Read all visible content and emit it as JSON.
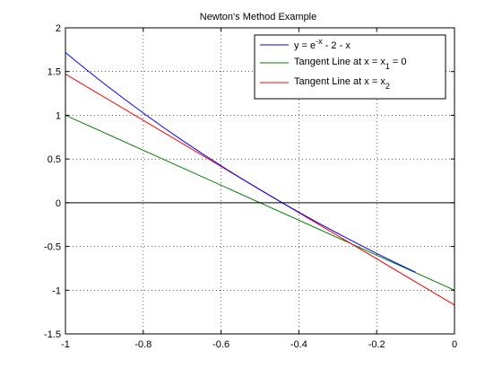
{
  "chart_data": {
    "type": "line",
    "title": "Newton's Method Example",
    "xlabel": "",
    "ylabel": "",
    "xlim": [
      -1,
      0
    ],
    "ylim": [
      -1.5,
      2
    ],
    "grid": true,
    "legend_position": "top-right",
    "xticks": [
      -1,
      -0.8,
      -0.6,
      -0.4,
      -0.2,
      0
    ],
    "xtick_labels": [
      "-1",
      "-0.8",
      "-0.6",
      "-0.4",
      "-0.2",
      "0"
    ],
    "yticks": [
      -1.5,
      -1,
      -0.5,
      0,
      0.5,
      1,
      1.5,
      2
    ],
    "ytick_labels": [
      "-1.5",
      "-1",
      "-0.5",
      "0",
      "0.5",
      "1",
      "1.5",
      "2"
    ],
    "series": [
      {
        "name": "y = e^-x - 2 - x",
        "color": "#0000ff",
        "x": [
          -1,
          -0.95,
          -0.9,
          -0.85,
          -0.8,
          -0.75,
          -0.7,
          -0.65,
          -0.6,
          -0.55,
          -0.5,
          -0.45,
          -0.4,
          -0.35,
          -0.3,
          -0.25,
          -0.2,
          -0.15,
          -0.1
        ],
        "y": [
          1.718,
          1.536,
          1.36,
          1.19,
          1.026,
          0.867,
          0.714,
          0.566,
          0.422,
          0.283,
          0.149,
          0.018,
          -0.108,
          -0.231,
          -0.35,
          -0.466,
          -0.579,
          -0.688,
          -0.795
        ]
      },
      {
        "name": "Tangent Line at x = x1 = 0",
        "legend_main": "Tangent Line at x = x",
        "legend_sub": "1",
        "legend_tail": " = 0",
        "color": "#008000",
        "x": [
          -1,
          0
        ],
        "y": [
          1,
          -1
        ]
      },
      {
        "name": "Tangent Line at x = x2",
        "legend_main": "Tangent Line at x = x",
        "legend_sub": "2",
        "legend_tail": "",
        "color": "#ff0000",
        "x": [
          -1,
          0
        ],
        "y": [
          1.47,
          -1.17
        ]
      }
    ],
    "legend": {
      "entry1_main": "y = e",
      "entry1_sup": "-x",
      "entry1_tail": " - 2 - x"
    },
    "reference_line": {
      "y": 0,
      "color": "#000000"
    }
  }
}
